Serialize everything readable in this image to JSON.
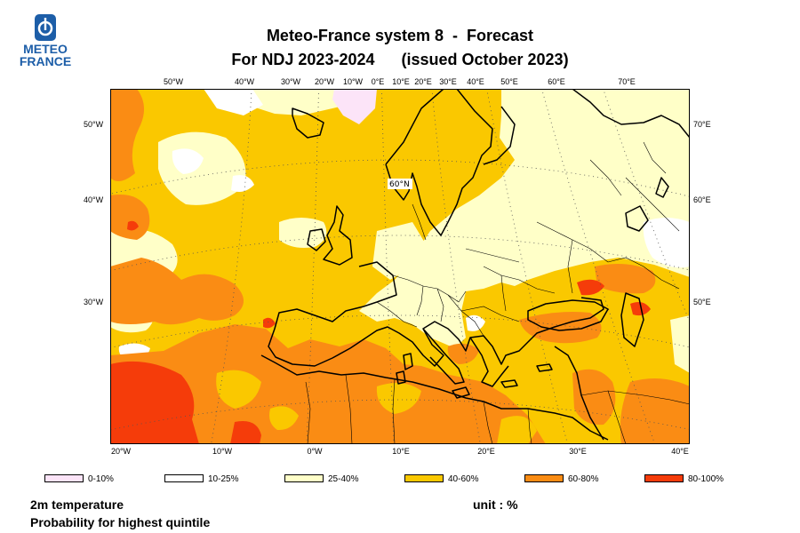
{
  "logo": {
    "line1": "METEO",
    "line2": "FRANCE"
  },
  "title": {
    "line1": "Meteo-France system 8  -  Forecast",
    "line2": "For NDJ 2023-2024      (issued October 2023)"
  },
  "map": {
    "region": "Europe / North Atlantic / North Africa",
    "parallel_label": "60°N",
    "top_labels": [
      "50°W",
      "40°W",
      "30°W",
      "20°W",
      "10°W",
      "0°E",
      "10°E",
      "20°E",
      "30°E",
      "40°E",
      "50°E",
      "60°E",
      "70°E"
    ],
    "bottom_labels": [
      "20°W",
      "10°W",
      "0°W",
      "10°E",
      "20°E",
      "30°E",
      "40°E"
    ],
    "left_labels": [
      "50°W",
      "40°W",
      "30°W"
    ],
    "right_labels": [
      "70°E",
      "60°E",
      "50°E"
    ]
  },
  "legend": [
    {
      "label": "0-10%",
      "color": "#fce4f8"
    },
    {
      "label": "10-25%",
      "color": "#ffffff"
    },
    {
      "label": "25-40%",
      "color": "#ffffc8"
    },
    {
      "label": "40-60%",
      "color": "#fac800"
    },
    {
      "label": "60-80%",
      "color": "#fa8c14"
    },
    {
      "label": "80-100%",
      "color": "#f53c0a"
    }
  ],
  "variable": "2m temperature",
  "description": "Probability for highest quintile",
  "unit": "unit : %"
}
